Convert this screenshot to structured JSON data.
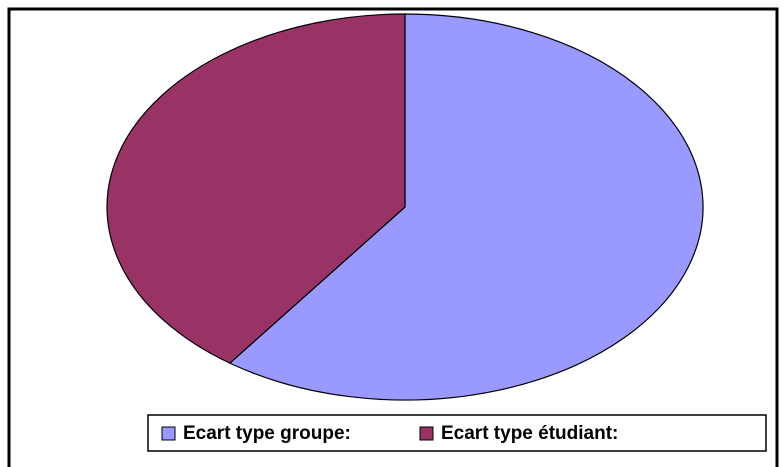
{
  "chart_data": {
    "type": "pie",
    "categories": [
      "Ecart type groupe:",
      "Ecart type étudiant:"
    ],
    "values": [
      60,
      40
    ],
    "colors": [
      "#9999ff",
      "#993366"
    ]
  }
}
